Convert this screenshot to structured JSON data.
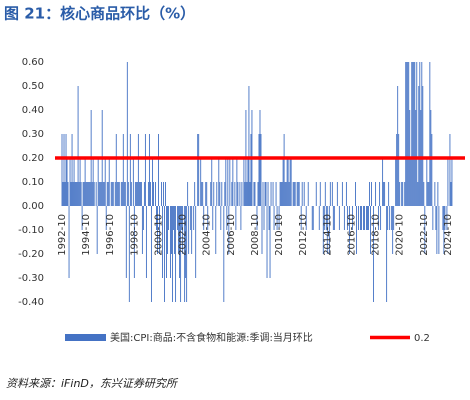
{
  "chart_data": {
    "type": "bar",
    "title": "图 21：核心商品环比（%）",
    "source": "资料来源：iFinD，东兴证券研究所",
    "series": [
      {
        "name": "美国:CPI:商品:不含食物和能源:季调:当月环比",
        "color": "#4472c4",
        "values": [
          0.3,
          0.1,
          0.3,
          0.1,
          0.3,
          0.2,
          0.1,
          -0.3,
          0.2,
          0.1,
          0.3,
          0.1,
          0.2,
          0.1,
          0.1,
          0.1,
          0.5,
          0.1,
          0.2,
          0.1,
          -0.1,
          0.1,
          0.1,
          0.2,
          0.1,
          0.1,
          0.1,
          0.1,
          0.1,
          0.4,
          0.1,
          0.2,
          0.1,
          0,
          0.1,
          -0.2,
          0.2,
          0.1,
          0.1,
          0.1,
          0.4,
          0.1,
          0.1,
          0.2,
          -0.1,
          0.1,
          0.1,
          0.2,
          0,
          0.1,
          0.1,
          0.1,
          0,
          0.1,
          0.3,
          0.1,
          0.1,
          0.1,
          0,
          0.1,
          0.1,
          0.3,
          0.1,
          0.1,
          -0.3,
          0.6,
          0.1,
          -0.4,
          0.3,
          0.1,
          0,
          0.2,
          -0.3,
          0.1,
          0.1,
          0.1,
          0.3,
          0.1,
          0.1,
          0.1,
          -0.2,
          -0.1,
          0.1,
          0.3,
          -0.3,
          0,
          0.1,
          0.3,
          0.1,
          -0.4,
          0.2,
          0.1,
          0,
          0.1,
          -0.1,
          -0.2,
          0.3,
          -0.2,
          0,
          0.1,
          -0.3,
          0.1,
          -0.4,
          0.1,
          -0.3,
          -0.2,
          -0.1,
          0,
          -0.3,
          -0.2,
          -0.4,
          -0.1,
          -0.2,
          -0.4,
          0,
          -0.1,
          -0.2,
          -0.3,
          -0.4,
          -0.1,
          -0.2,
          0,
          -0.4,
          -0.3,
          -0.4,
          0.1,
          -0.2,
          0,
          -0.1,
          -0.2,
          0,
          -0.1,
          0.1,
          -0.3,
          0,
          0.3,
          0.3,
          0,
          0.2,
          0.1,
          0.1,
          -0.1,
          0,
          0.1,
          0.1,
          -0.1,
          0,
          0,
          0.1,
          0.2,
          -0.1,
          0.1,
          0,
          -0.2,
          0.1,
          0,
          0.2,
          0.1,
          -0.1,
          0.1,
          0,
          -0.4,
          0.1,
          0.2,
          -0.1,
          0.2,
          -0.2,
          0.2,
          0,
          0.1,
          0.2,
          0,
          0.1,
          -0.1,
          0.2,
          0.1,
          0,
          0.1,
          -0.1,
          0.1,
          0,
          0.2,
          0.1,
          0.4,
          0.1,
          0.2,
          0.5,
          0.1,
          0.3,
          0.4,
          0,
          0.1,
          0.1,
          0,
          -0.1,
          0.1,
          0.3,
          0.4,
          0.3,
          -0.2,
          0.1,
          -0.1,
          0.1,
          0.1,
          -0.3,
          0.1,
          -0.1,
          -0.3,
          0.1,
          0,
          0.1,
          -0.1,
          0,
          0.1,
          -0.1,
          0,
          -0.1,
          0.1,
          0.1,
          0.1,
          0.2,
          0.3,
          0.1,
          0.1,
          0.2,
          0.2,
          0.1,
          0.2,
          0.2,
          0,
          0.1,
          0.1,
          0.1,
          0,
          0.1,
          0.1,
          0.1,
          0,
          -0.1,
          0.1,
          0,
          0.1,
          0,
          -0.1,
          0,
          0.1,
          0,
          0,
          0,
          -0.1,
          -0.1,
          0,
          0,
          0.1,
          0,
          0,
          -0.1,
          0.1,
          0,
          0,
          -0.2,
          -0.1,
          0.1,
          -0.1,
          -0.2,
          0,
          -0.2,
          0.1,
          0,
          0.1,
          -0.1,
          -0.1,
          0,
          0,
          0.1,
          0,
          -0.1,
          0,
          0,
          0.1,
          0,
          -0.1,
          0,
          0.1,
          -0.1,
          0,
          -0.2,
          0,
          0,
          -0.1,
          0,
          0,
          0.1,
          -0.2,
          0,
          -0.1,
          0,
          -0.1,
          -0.1,
          0,
          -0.1,
          -0.1,
          0,
          -0.1,
          -0.1,
          -0.1,
          0.1,
          -0.2,
          0.1,
          0,
          -0.4,
          0,
          0.1,
          0,
          0,
          -0.1,
          0.1,
          -0.1,
          0,
          0.2,
          0.1,
          0.1,
          0,
          -0.4,
          -0.1,
          0.1,
          -0.1,
          0,
          -0.1,
          -0.2,
          -0.1,
          0,
          0.2,
          0.3,
          0.5,
          0.3,
          0.1,
          0,
          0.1,
          0.1,
          0,
          0.1,
          0.6,
          0.6,
          0.6,
          0.6,
          0.4,
          0.2,
          0.6,
          0.6,
          0.6,
          0.6,
          0.4,
          0.6,
          0.1,
          0.5,
          0.6,
          0.4,
          0.6,
          0.5,
          0.1,
          -0.2,
          0,
          0.2,
          0.1,
          0.1,
          0.6,
          0.4,
          0.3,
          -0.1,
          0,
          0.1,
          -0.1,
          -0.2,
          0.1,
          -0.2,
          0,
          0,
          0,
          -0.1,
          -0.2,
          -0.1,
          0,
          -0.1,
          0.2,
          0,
          0.3,
          0.1,
          0.2
        ]
      }
    ],
    "reference_line": {
      "name": "0.2",
      "value": 0.2,
      "color": "#ff0000"
    },
    "categories": [
      "1992-10",
      null,
      null,
      null,
      null,
      null,
      null,
      null,
      null,
      null,
      null,
      null,
      null,
      null,
      null,
      null,
      null,
      null,
      null,
      null,
      null,
      null,
      null,
      null,
      "1994-10",
      null,
      null,
      null,
      null,
      null,
      null,
      null,
      null,
      null,
      null,
      null,
      null,
      null,
      null,
      null,
      null,
      null,
      null,
      null,
      null,
      null,
      null,
      null,
      "1996-10",
      null,
      null,
      null,
      null,
      null,
      null,
      null,
      null,
      null,
      null,
      null,
      null,
      null,
      null,
      null,
      null,
      null,
      null,
      null,
      null,
      null,
      null,
      null,
      "1998-10",
      null,
      null,
      null,
      null,
      null,
      null,
      null,
      null,
      null,
      null,
      null,
      null,
      null,
      null,
      null,
      null,
      null,
      null,
      null,
      null,
      null,
      null,
      null,
      "2000-10",
      null,
      null,
      null,
      null,
      null,
      null,
      null,
      null,
      null,
      null,
      null,
      null,
      null,
      null,
      null,
      null,
      null,
      null,
      null,
      null,
      null,
      null,
      null,
      "2002-10",
      null,
      null,
      null,
      null,
      null,
      null,
      null,
      null,
      null,
      null,
      null,
      null,
      null,
      null,
      null,
      null,
      null,
      null,
      null,
      null,
      null,
      null,
      null,
      "2004-10",
      null,
      null,
      null,
      null,
      null,
      null,
      null,
      null,
      null,
      null,
      null,
      null,
      null,
      null,
      null,
      null,
      null,
      null,
      null,
      null,
      null,
      null,
      null,
      "2006-10",
      null,
      null,
      null,
      null,
      null,
      null,
      null,
      null,
      null,
      null,
      null,
      null,
      null,
      null,
      null,
      null,
      null,
      null,
      null,
      null,
      null,
      null,
      null,
      "2008-10",
      null,
      null,
      null,
      null,
      null,
      null,
      null,
      null,
      null,
      null,
      null,
      null,
      null,
      null,
      null,
      null,
      null,
      null,
      null,
      null,
      null,
      null,
      null,
      "2010-10",
      null,
      null,
      null,
      null,
      null,
      null,
      null,
      null,
      null,
      null,
      null,
      null,
      null,
      null,
      null,
      null,
      null,
      null,
      null,
      null,
      null,
      null,
      null,
      "2012-10",
      null,
      null,
      null,
      null,
      null,
      null,
      null,
      null,
      null,
      null,
      null,
      null,
      null,
      null,
      null,
      null,
      null,
      null,
      null,
      null,
      null,
      null,
      null,
      "2014-10",
      null,
      null,
      null,
      null,
      null,
      null,
      null,
      null,
      null,
      null,
      null,
      null,
      null,
      null,
      null,
      null,
      null,
      null,
      null,
      null,
      null,
      null,
      null,
      "2016-10",
      null,
      null,
      null,
      null,
      null,
      null,
      null,
      null,
      null,
      null,
      null,
      null,
      null,
      null,
      null,
      null,
      null,
      null,
      null,
      null,
      null,
      null,
      null,
      "2018-10",
      null,
      null,
      null,
      null,
      null,
      null,
      null,
      null,
      null,
      null,
      null,
      null,
      null,
      null,
      null,
      null,
      null,
      null,
      null,
      null,
      null,
      null,
      null,
      "2020-10",
      null,
      null,
      null,
      null,
      null,
      null,
      null,
      null,
      null,
      null,
      null,
      null,
      null,
      null,
      null,
      null,
      null,
      null,
      null,
      null,
      null,
      null,
      null,
      "2022-10",
      null,
      null,
      null,
      null,
      null,
      null,
      null,
      null,
      null,
      null,
      null,
      null,
      null,
      null,
      null,
      null,
      null,
      null,
      null,
      null,
      null,
      null,
      null,
      "2024-10",
      null,
      null,
      null,
      null
    ],
    "ylim": [
      -0.4,
      0.6
    ],
    "yticks": [
      {
        "value": 0.6,
        "label": "0.60"
      },
      {
        "value": 0.5,
        "label": "0.50"
      },
      {
        "value": 0.4,
        "label": "0.40"
      },
      {
        "value": 0.3,
        "label": "0.30"
      },
      {
        "value": 0.2,
        "label": "0.20"
      },
      {
        "value": 0.1,
        "label": "0.10"
      },
      {
        "value": 0,
        "label": "0.00"
      },
      {
        "value": -0.1,
        "label": "-0.10"
      },
      {
        "value": -0.2,
        "label": "-0.20"
      },
      {
        "value": -0.3,
        "label": "-0.30"
      },
      {
        "value": -0.4,
        "label": "-0.40"
      }
    ],
    "grid": false
  }
}
